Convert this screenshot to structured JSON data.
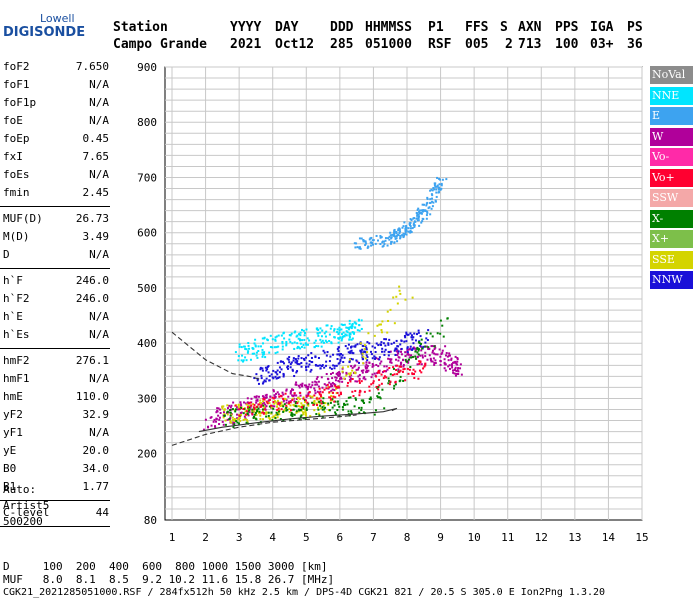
{
  "logo": {
    "top": "Lowell",
    "main": "DIGISONDE"
  },
  "header": {
    "labels": [
      "Station",
      "YYYY",
      "DAY",
      "DDD",
      "HHMMSS",
      "P1",
      "FFS",
      "S",
      "AXN",
      "PPS",
      "IGA",
      "PS"
    ],
    "values": [
      "Campo Grande",
      "2021",
      "Oct12",
      "285",
      "051000",
      "RSF",
      "005",
      "2",
      "713",
      "100",
      "03+",
      "36"
    ]
  },
  "params": [
    [
      {
        "k": "foF2",
        "v": "7.650"
      },
      {
        "k": "foF1",
        "v": "N/A"
      },
      {
        "k": "foF1p",
        "v": "N/A"
      },
      {
        "k": "foE",
        "v": "N/A"
      },
      {
        "k": "foEp",
        "v": "0.45"
      },
      {
        "k": "fxI",
        "v": "7.65"
      },
      {
        "k": "foEs",
        "v": "N/A"
      },
      {
        "k": "fmin",
        "v": "2.45"
      }
    ],
    [
      {
        "k": "MUF(D)",
        "v": "26.73"
      },
      {
        "k": "M(D)",
        "v": "3.49"
      },
      {
        "k": "D",
        "v": "N/A"
      }
    ],
    [
      {
        "k": "h`F",
        "v": "246.0"
      },
      {
        "k": "h`F2",
        "v": "246.0"
      },
      {
        "k": "h`E",
        "v": "N/A"
      },
      {
        "k": "h`Es",
        "v": "N/A"
      }
    ],
    [
      {
        "k": "hmF2",
        "v": "276.1"
      },
      {
        "k": "hmF1",
        "v": "N/A"
      },
      {
        "k": "hmE",
        "v": "110.0"
      },
      {
        "k": "yF2",
        "v": "32.9"
      },
      {
        "k": "yF1",
        "v": "N/A"
      },
      {
        "k": "yE",
        "v": "20.0"
      },
      {
        "k": "B0",
        "v": "34.0"
      },
      {
        "k": "B1",
        "v": "1.77"
      }
    ],
    [
      {
        "k": "C-level",
        "v": "44"
      }
    ]
  ],
  "auto": [
    "Auto:",
    "Artist5",
    "500200"
  ],
  "legend": [
    {
      "label": "NoVal",
      "color": "#8c8c8c",
      "text_color": "#ffffff"
    },
    {
      "label": "NNE",
      "color": "#00e5ff",
      "text_color": "#ffffff"
    },
    {
      "label": "E",
      "color": "#3da3f0",
      "text_color": "#ffffff"
    },
    {
      "label": "W",
      "color": "#b0009a",
      "text_color": "#ffffff"
    },
    {
      "label": "Vo-",
      "color": "#ff2aa8",
      "text_color": "#ffffff"
    },
    {
      "label": "Vo+",
      "color": "#ff0030",
      "text_color": "#ffffff"
    },
    {
      "label": "SSW",
      "color": "#f4a8a8",
      "text_color": "#ffffff"
    },
    {
      "label": "X-",
      "color": "#008000",
      "text_color": "#ffffff"
    },
    {
      "label": "X+",
      "color": "#7dbf4a",
      "text_color": "#ffffff"
    },
    {
      "label": "SSE",
      "color": "#d4d400",
      "text_color": "#ffffff"
    },
    {
      "label": "NNW",
      "color": "#1a10d8",
      "text_color": "#ffffff"
    }
  ],
  "bottom": {
    "d_row": "D     100  200  400  600  800 1000 1500 3000 [km]",
    "muf_row": "MUF   8.0  8.1  8.5  9.2 10.2 11.6 15.8 26.7 [MHz]",
    "footer": "CGK21_2021285051000.RSF / 284fx512h 50 kHz 2.5 km / DPS-4D CGK21 821 / 20.5 S 305.0 E Ion2Png 1.3.20"
  },
  "chart_data": {
    "type": "scatter",
    "xlim": [
      1,
      15
    ],
    "ylim": [
      80,
      900
    ],
    "x_ticks": [
      1,
      2,
      3,
      4,
      5,
      6,
      7,
      8,
      9,
      10,
      11,
      12,
      13,
      14,
      15
    ],
    "y_ticks": [
      80,
      200,
      300,
      400,
      500,
      600,
      700,
      800,
      900
    ],
    "grid": true,
    "legend_placement": "right",
    "series": [
      {
        "name": "W",
        "points": [
          [
            2.0,
            260
          ],
          [
            3.0,
            280
          ],
          [
            4.0,
            300
          ],
          [
            5.0,
            320
          ],
          [
            6.0,
            340
          ],
          [
            7.0,
            360
          ],
          [
            8.0,
            380
          ],
          [
            9.0,
            380
          ],
          [
            9.5,
            355
          ]
        ]
      },
      {
        "name": "E",
        "points": [
          [
            6.5,
            580
          ],
          [
            7.5,
            590
          ],
          [
            8.0,
            610
          ],
          [
            8.5,
            640
          ],
          [
            9.0,
            700
          ]
        ]
      },
      {
        "name": "NNW",
        "points": [
          [
            3.5,
            340
          ],
          [
            4.5,
            360
          ],
          [
            5.5,
            370
          ],
          [
            6.5,
            385
          ],
          [
            7.5,
            395
          ],
          [
            8.5,
            410
          ]
        ]
      },
      {
        "name": "NNE",
        "points": [
          [
            3.0,
            380
          ],
          [
            4.0,
            400
          ],
          [
            5.0,
            410
          ],
          [
            6.0,
            420
          ],
          [
            6.5,
            430
          ]
        ]
      },
      {
        "name": "SSE",
        "points": [
          [
            2.5,
            270
          ],
          [
            3.5,
            280
          ],
          [
            4.5,
            285
          ],
          [
            5.5,
            290
          ],
          [
            8.0,
            495
          ]
        ]
      },
      {
        "name": "X-",
        "points": [
          [
            2.5,
            265
          ],
          [
            4.0,
            275
          ],
          [
            5.5,
            285
          ],
          [
            7.0,
            290
          ],
          [
            9.2,
            450
          ]
        ]
      },
      {
        "name": "Vo+",
        "points": [
          [
            3.0,
            285
          ],
          [
            5.0,
            300
          ],
          [
            7.0,
            330
          ],
          [
            8.5,
            360
          ]
        ]
      }
    ],
    "curves": [
      {
        "name": "upper-dashed",
        "points": [
          [
            1.0,
            420
          ],
          [
            2.0,
            370
          ],
          [
            2.8,
            345
          ],
          [
            3.3,
            340
          ],
          [
            3.6,
            335
          ]
        ]
      },
      {
        "name": "lower-dashed",
        "points": [
          [
            1.0,
            215
          ],
          [
            2.0,
            235
          ],
          [
            3.0,
            248
          ],
          [
            4.0,
            257
          ],
          [
            5.0,
            262
          ],
          [
            6.0,
            267
          ],
          [
            6.5,
            270
          ]
        ]
      },
      {
        "name": "profile-solid",
        "points": [
          [
            1.8,
            240
          ],
          [
            2.5,
            248
          ],
          [
            3.5,
            256
          ],
          [
            4.5,
            263
          ],
          [
            5.5,
            268
          ],
          [
            6.5,
            272
          ],
          [
            7.3,
            276
          ],
          [
            7.7,
            282
          ],
          [
            7.55,
            278
          ]
        ]
      }
    ]
  }
}
